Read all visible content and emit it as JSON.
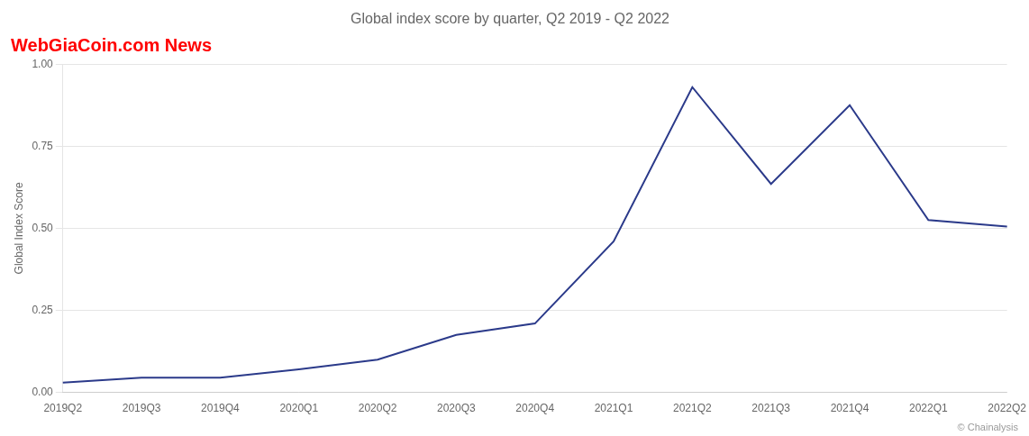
{
  "chart_data": {
    "type": "line",
    "title": "Global index score by quarter, Q2 2019 - Q2 2022",
    "y_label": "Global Index Score",
    "annotations": [
      {
        "text": "WebGiaCoin.com News",
        "color": "#FF0000"
      },
      {
        "text": "© Chainalysis"
      }
    ],
    "categories": [
      "2019Q2",
      "2019Q3",
      "2019Q4",
      "2020Q1",
      "2020Q2",
      "2020Q3",
      "2020Q4",
      "2021Q1",
      "2021Q2",
      "2021Q3",
      "2021Q4",
      "2022Q1",
      "2022Q2"
    ],
    "values": [
      0.03,
      0.045,
      0.045,
      0.07,
      0.1,
      0.175,
      0.21,
      0.46,
      0.93,
      0.635,
      0.875,
      0.525,
      0.505
    ],
    "color": "#2B3A8A",
    "ylim": [
      0.0,
      1.0
    ],
    "yticks": [
      {
        "value": 0.0,
        "label": "0.00"
      },
      0.25,
      {
        "value": 0.5,
        "label": "0.50"
      },
      0.75,
      {
        "value": 1.0,
        "label": "1.00"
      }
    ],
    "grid": true
  }
}
